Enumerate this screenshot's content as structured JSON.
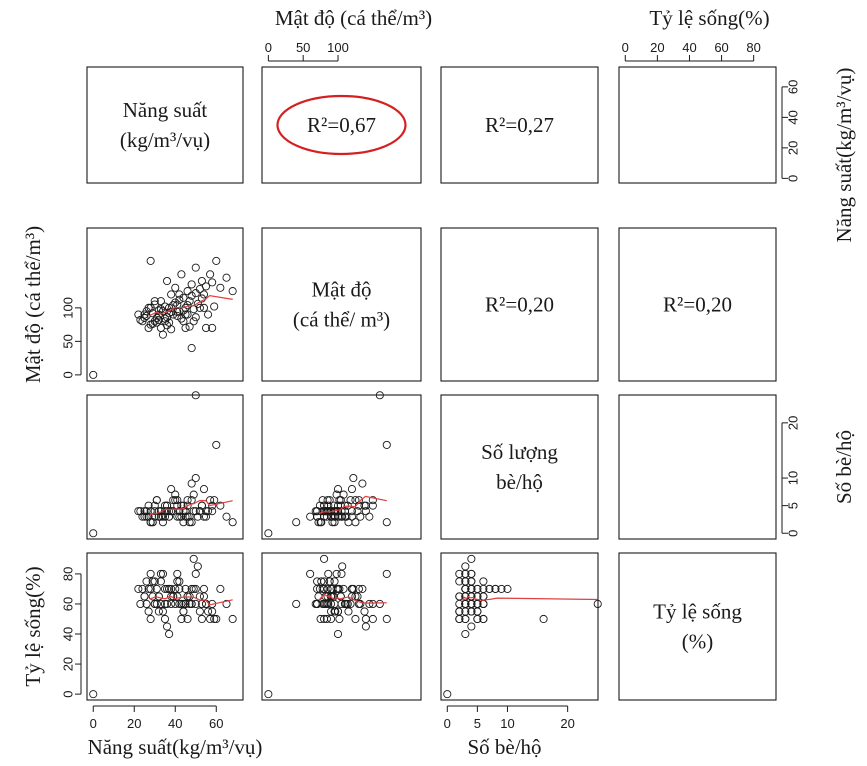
{
  "chart_data": {
    "type": "scatter",
    "title": "",
    "variables": [
      {
        "key": "yield",
        "diag_lines": [
          "Năng suất",
          "(kg/m³/vụ)"
        ],
        "axis_label": "Năng suất(kg/m³/vụ)",
        "range": [
          0,
          70
        ],
        "ticks": [
          0,
          20,
          40,
          60
        ]
      },
      {
        "key": "density",
        "diag_lines": [
          "Mật độ",
          "(cá thể/ m³)"
        ],
        "axis_label": "Mật độ (cá thể/m³)",
        "range": [
          0,
          210
        ],
        "ticks": [
          0,
          50,
          100
        ]
      },
      {
        "key": "cages",
        "diag_lines": [
          "Số lượng",
          "bè/hộ"
        ],
        "axis_label": "Số bè/hộ",
        "range": [
          0,
          24
        ],
        "ticks": [
          0,
          5,
          10,
          20
        ]
      },
      {
        "key": "survival",
        "diag_lines": [
          "Tỷ lệ sống",
          "(%)"
        ],
        "axis_label": "Tỷ lệ sống(%)",
        "range": [
          0,
          90
        ],
        "ticks": [
          0,
          20,
          40,
          60,
          80
        ]
      }
    ],
    "correlations": [
      {
        "row": 0,
        "col": 1,
        "label": "R²=0,67",
        "highlighted": true
      },
      {
        "row": 0,
        "col": 2,
        "label": "R²=0,27",
        "highlighted": false
      },
      {
        "row": 1,
        "col": 2,
        "label": "R²=0,20",
        "highlighted": false
      },
      {
        "row": 1,
        "col": 3,
        "label": "R²=0,20",
        "highlighted": false
      }
    ],
    "observations": [
      [
        0,
        0,
        0,
        0
      ],
      [
        28,
        170,
        2,
        80
      ],
      [
        30,
        80,
        3,
        75
      ],
      [
        22,
        90,
        4,
        70
      ],
      [
        25,
        85,
        4,
        65
      ],
      [
        26,
        95,
        3,
        60
      ],
      [
        27,
        100,
        5,
        55
      ],
      [
        28,
        75,
        2,
        50
      ],
      [
        30,
        105,
        4,
        60
      ],
      [
        31,
        85,
        6,
        70
      ],
      [
        32,
        90,
        3,
        65
      ],
      [
        33,
        110,
        4,
        60
      ],
      [
        34,
        95,
        2,
        55
      ],
      [
        35,
        80,
        5,
        50
      ],
      [
        36,
        140,
        4,
        45
      ],
      [
        37,
        100,
        3,
        40
      ],
      [
        38,
        120,
        8,
        70
      ],
      [
        39,
        90,
        4,
        65
      ],
      [
        40,
        130,
        6,
        60
      ],
      [
        41,
        105,
        3,
        80
      ],
      [
        42,
        95,
        4,
        75
      ],
      [
        43,
        150,
        5,
        60
      ],
      [
        44,
        115,
        2,
        55
      ],
      [
        45,
        100,
        4,
        70
      ],
      [
        46,
        125,
        6,
        65
      ],
      [
        47,
        110,
        3,
        60
      ],
      [
        48,
        135,
        9,
        70
      ],
      [
        50,
        160,
        25,
        60
      ],
      [
        52,
        100,
        4,
        55
      ],
      [
        53,
        140,
        5,
        50
      ],
      [
        54,
        120,
        3,
        65
      ],
      [
        55,
        70,
        4,
        60
      ],
      [
        57,
        150,
        6,
        50
      ],
      [
        60,
        170,
        16,
        50
      ],
      [
        62,
        130,
        5,
        70
      ],
      [
        65,
        145,
        3,
        60
      ],
      [
        68,
        125,
        2,
        50
      ],
      [
        24,
        80,
        3,
        70
      ],
      [
        26,
        88,
        4,
        75
      ],
      [
        29,
        92,
        2,
        65
      ],
      [
        31,
        78,
        6,
        60
      ],
      [
        33,
        98,
        4,
        80
      ],
      [
        35,
        102,
        3,
        70
      ],
      [
        36,
        86,
        5,
        60
      ],
      [
        38,
        94,
        4,
        65
      ],
      [
        40,
        108,
        7,
        70
      ],
      [
        42,
        112,
        3,
        60
      ],
      [
        44,
        96,
        4,
        55
      ],
      [
        46,
        104,
        5,
        65
      ],
      [
        48,
        118,
        6,
        60
      ],
      [
        50,
        122,
        10,
        70
      ],
      [
        52,
        128,
        4,
        65
      ],
      [
        55,
        132,
        3,
        60
      ],
      [
        58,
        138,
        5,
        55
      ],
      [
        27,
        70,
        3,
        70
      ],
      [
        29,
        76,
        2,
        75
      ],
      [
        32,
        82,
        4,
        65
      ],
      [
        34,
        60,
        3,
        80
      ],
      [
        36,
        74,
        5,
        70
      ],
      [
        38,
        68,
        4,
        60
      ],
      [
        41,
        88,
        6,
        75
      ],
      [
        43,
        84,
        3,
        50
      ],
      [
        45,
        90,
        4,
        60
      ],
      [
        47,
        72,
        2,
        65
      ],
      [
        49,
        98,
        7,
        70
      ],
      [
        51,
        106,
        3,
        85
      ],
      [
        53,
        114,
        5,
        60
      ],
      [
        56,
        90,
        4,
        55
      ],
      [
        59,
        102,
        6,
        50
      ],
      [
        23,
        82,
        4,
        60
      ],
      [
        25,
        90,
        3,
        65
      ],
      [
        28,
        100,
        4,
        70
      ],
      [
        30,
        110,
        5,
        60
      ],
      [
        32,
        96,
        3,
        55
      ],
      [
        35,
        84,
        4,
        60
      ],
      [
        37,
        92,
        3,
        70
      ],
      [
        39,
        104,
        6,
        65
      ],
      [
        42,
        120,
        4,
        70
      ],
      [
        44,
        80,
        5,
        60
      ],
      [
        46,
        90,
        3,
        50
      ],
      [
        48,
        40,
        2,
        60
      ],
      [
        50,
        86,
        4,
        80
      ],
      [
        33,
        70,
        3,
        75
      ],
      [
        37,
        78,
        4,
        70
      ],
      [
        41,
        94,
        5,
        65
      ],
      [
        45,
        70,
        3,
        60
      ],
      [
        49,
        80,
        4,
        90
      ],
      [
        54,
        100,
        8,
        70
      ],
      [
        58,
        70,
        4,
        60
      ]
    ],
    "grid": false
  }
}
